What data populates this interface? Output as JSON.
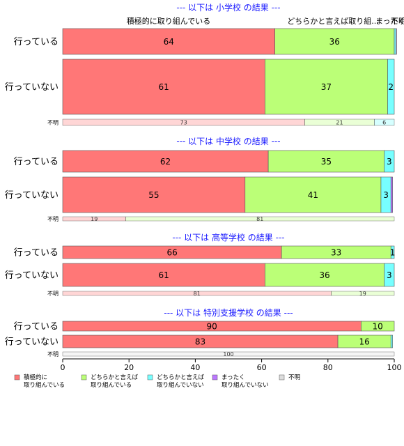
{
  "chart_data": {
    "type": "bar",
    "orientation": "horizontal",
    "stacked": true,
    "xlim": [
      0,
      100
    ],
    "x_ticks": [
      "0",
      "20",
      "40",
      "60",
      "80",
      "100"
    ],
    "column_headers": [
      "積極的に取り組んでいる",
      "どちらかと言えば取り組...",
      "まったく...",
      "不明"
    ],
    "categories": [
      "積極的に取り組んでいる",
      "どちらかと言えば取り組んでいる",
      "どちらかと言えば取り組んでいない",
      "まったく取り組んでいない",
      "不明"
    ],
    "legend": [
      {
        "line1": "積極的に",
        "line2": "取り組んでいる",
        "color": "#ff7777"
      },
      {
        "line1": "どちらかと言えば",
        "line2": "取り組んでいる",
        "color": "#bbff77"
      },
      {
        "line1": "どちらかと言えば",
        "line2": "取り組んでいない",
        "color": "#77ffff"
      },
      {
        "line1": "まったく",
        "line2": "取り組んでいない",
        "color": "#bb77ff"
      },
      {
        "line1": "不明",
        "line2": "",
        "color": "#dddddd"
      }
    ],
    "sections": [
      {
        "title": "--- 以下は 小学校 の結果 ---",
        "rows": [
          {
            "label": "行っている",
            "values": [
              64,
              36,
              0.5,
              0.2,
              0
            ],
            "labels": [
              "64",
              "36",
              "",
              "",
              ""
            ]
          },
          {
            "label": "行っていない",
            "values": [
              61,
              37,
              2,
              0,
              0
            ],
            "labels": [
              "61",
              "37",
              "2",
              "",
              ""
            ]
          },
          {
            "label": "不明",
            "values": [
              73,
              21,
              6,
              0,
              0
            ],
            "labels": [
              "73",
              "21",
              "6",
              "",
              ""
            ]
          }
        ]
      },
      {
        "title": "--- 以下は 中学校 の結果 ---",
        "rows": [
          {
            "label": "行っている",
            "values": [
              62,
              35,
              3,
              0,
              0
            ],
            "labels": [
              "62",
              "35",
              "3",
              "",
              ""
            ]
          },
          {
            "label": "行っていない",
            "values": [
              55,
              41,
              3,
              0.5,
              0
            ],
            "labels": [
              "55",
              "41",
              "3",
              "",
              ""
            ]
          },
          {
            "label": "不明",
            "values": [
              19,
              81,
              0,
              0,
              0
            ],
            "labels": [
              "19",
              "81",
              "",
              "",
              ""
            ]
          }
        ]
      },
      {
        "title": "--- 以下は 高等学校 の結果 ---",
        "rows": [
          {
            "label": "行っている",
            "values": [
              66,
              33,
              1,
              0,
              0
            ],
            "labels": [
              "66",
              "33",
              "1",
              "",
              ""
            ]
          },
          {
            "label": "行っていない",
            "values": [
              61,
              36,
              3,
              0,
              0
            ],
            "labels": [
              "61",
              "36",
              "3",
              "",
              ""
            ]
          },
          {
            "label": "不明",
            "values": [
              81,
              19,
              0,
              0,
              0
            ],
            "labels": [
              "81",
              "19",
              "",
              "",
              ""
            ]
          }
        ]
      },
      {
        "title": "--- 以下は 特別支援学校 の結果 ---",
        "rows": [
          {
            "label": "行っている",
            "values": [
              90,
              10,
              0,
              0,
              0
            ],
            "labels": [
              "90",
              "10",
              "",
              "",
              ""
            ]
          },
          {
            "label": "行っていない",
            "values": [
              83,
              16,
              0.5,
              0,
              0
            ],
            "labels": [
              "83",
              "16",
              "",
              "",
              ""
            ]
          },
          {
            "label": "不明",
            "values": [
              0,
              0,
              0,
              0,
              100
            ],
            "labels": [
              "",
              "",
              "",
              "",
              "100"
            ]
          }
        ]
      }
    ]
  }
}
